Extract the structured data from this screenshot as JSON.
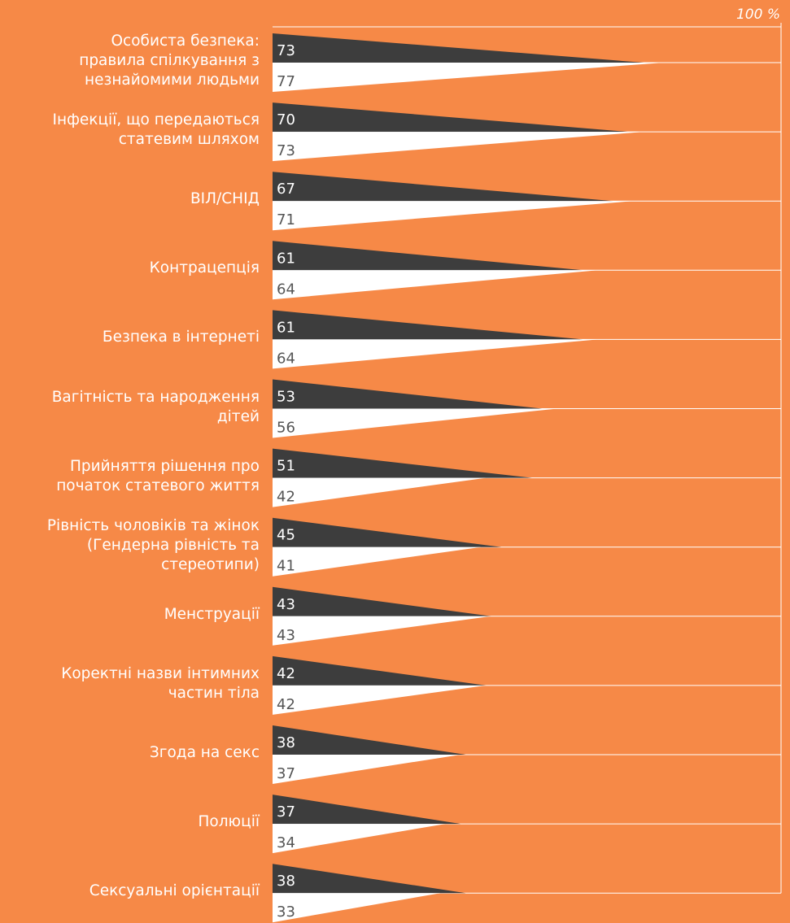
{
  "chart_data": {
    "type": "bar",
    "max_label": "100 %",
    "xlim": [
      0,
      100
    ],
    "categories": [
      "Особиста безпека:\nправила спілкування з\nнезнайомими людьми",
      "Інфекції, що передаються\nстатевим шляхом",
      "ВІЛ/СНІД",
      "Контрацепція",
      "Безпека в інтернеті",
      "Вагітність та народження\nдітей",
      "Прийняття рішення про\nпочаток статевого життя",
      "Рівність чоловіків та жінок\n(Гендерна рівність та\nстереотипи)",
      "Менструації",
      "Коректні назви інтимних\nчастин тіла",
      "Згода на секс",
      "Полюції",
      "Сексуальні орієнтації"
    ],
    "series": [
      {
        "values": [
          73,
          70,
          67,
          61,
          61,
          53,
          51,
          45,
          43,
          42,
          38,
          37,
          38
        ],
        "color": "#3D3D3D"
      },
      {
        "values": [
          77,
          73,
          71,
          64,
          64,
          56,
          42,
          41,
          43,
          42,
          37,
          34,
          33
        ],
        "color": "#FFFFFF"
      }
    ],
    "value_label_colors": [
      "#FFFFFF",
      "#555555"
    ],
    "axis_color": "#FFFFFF",
    "background": "#F68947"
  }
}
